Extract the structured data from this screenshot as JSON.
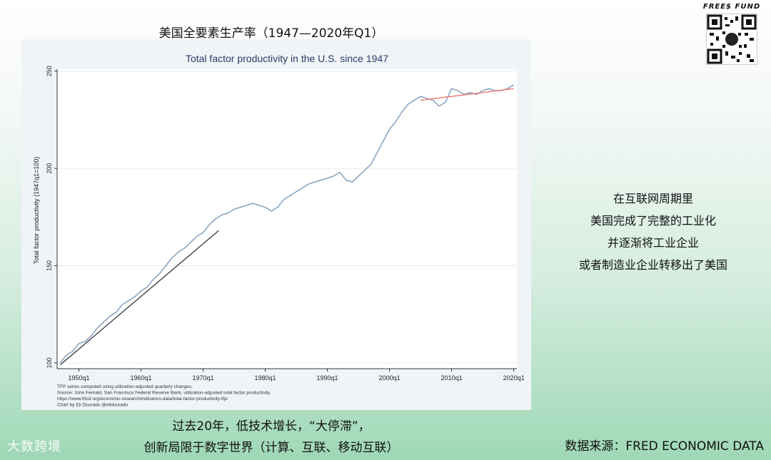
{
  "page": {
    "top_title": "美国全要素生产率（1947—2020年Q1）",
    "brand": "FREE$ FUND",
    "side_lines": [
      "在互联网周期里",
      "美国完成了完整的工业化",
      "并逐渐将工业企业",
      "或者制造业企业转移出了美国"
    ],
    "bottom_lines": [
      "过去20年，低技术增长，“大停滞”，",
      "创新局限于数字世界（计算、互联、移动互联）"
    ],
    "source": "数据来源：FRED ECONOMIC DATA",
    "watermark": "大数跨境"
  },
  "chart_data": {
    "type": "line",
    "title": "Total factor productivity in the U.S. since 1947",
    "ylabel": "Total factor productivity (1947q1=100)",
    "xlabel": "",
    "xlim": [
      1946.5,
      2020.5
    ],
    "ylim": [
      97,
      251
    ],
    "x_ticks": [
      1950,
      1960,
      1970,
      1980,
      1990,
      2000,
      2010,
      2020
    ],
    "x_tick_labels": [
      "1950q1",
      "1960q1",
      "1970q1",
      "1980q1",
      "1990q1",
      "2000q1",
      "2010q1",
      "2020q1"
    ],
    "y_ticks": [
      100,
      150,
      200,
      250
    ],
    "y_tick_labels": [
      "100",
      "150",
      "200",
      "250"
    ],
    "grid": true,
    "footnotes": [
      "TFP series computed using utilization-adjusted quarterly changes.",
      "Source: John Fernald, San Francisco Federal Reserve Bank, utilization-adjusted total factor productivity.",
      "https://www.frbsf.org/economic-research/indicators-data/total-factor-productivity-tfp/",
      "Chart by Eli Dourado @elidourado"
    ],
    "series": [
      {
        "color": "#8aa6c1",
        "x": [
          1947,
          1948,
          1949,
          1950,
          1951,
          1952,
          1953,
          1954,
          1955,
          1956,
          1957,
          1958,
          1959,
          1960,
          1961,
          1962,
          1963,
          1964,
          1965,
          1966,
          1967,
          1968,
          1969,
          1970,
          1971,
          1972,
          1973,
          1974,
          1975,
          1976,
          1977,
          1978,
          1979,
          1980,
          1981,
          1982,
          1983,
          1984,
          1985,
          1986,
          1987,
          1988,
          1989,
          1990,
          1991,
          1992,
          1993,
          1994,
          1995,
          1996,
          1997,
          1998,
          1999,
          2000,
          2001,
          2002,
          2003,
          2004,
          2005,
          2006,
          2007,
          2008,
          2009,
          2010,
          2011,
          2012,
          2013,
          2014,
          2015,
          2016,
          2017,
          2018,
          2019,
          2020
        ],
        "y": [
          100,
          104,
          106,
          110,
          111,
          114,
          118,
          121,
          124,
          126,
          130,
          132,
          134,
          137,
          139,
          143,
          146,
          150,
          154,
          157,
          159,
          162,
          165,
          167,
          171,
          174,
          176,
          177,
          179,
          180,
          181,
          182,
          181,
          180,
          178,
          180,
          184,
          186,
          188,
          190,
          192,
          193,
          194,
          195,
          196,
          198,
          194,
          193,
          196,
          199,
          202,
          208,
          214,
          220,
          224,
          229,
          233,
          235,
          237,
          236,
          235,
          232,
          234,
          241,
          240,
          238,
          239,
          238,
          240,
          241,
          240,
          240,
          241,
          243
        ]
      },
      {
        "color": "#3d3f45",
        "x": [
          1947,
          1972.5
        ],
        "y": [
          99,
          168
        ]
      },
      {
        "color": "#f07a72",
        "x": [
          2005,
          2020
        ],
        "y": [
          235,
          241
        ]
      }
    ]
  }
}
